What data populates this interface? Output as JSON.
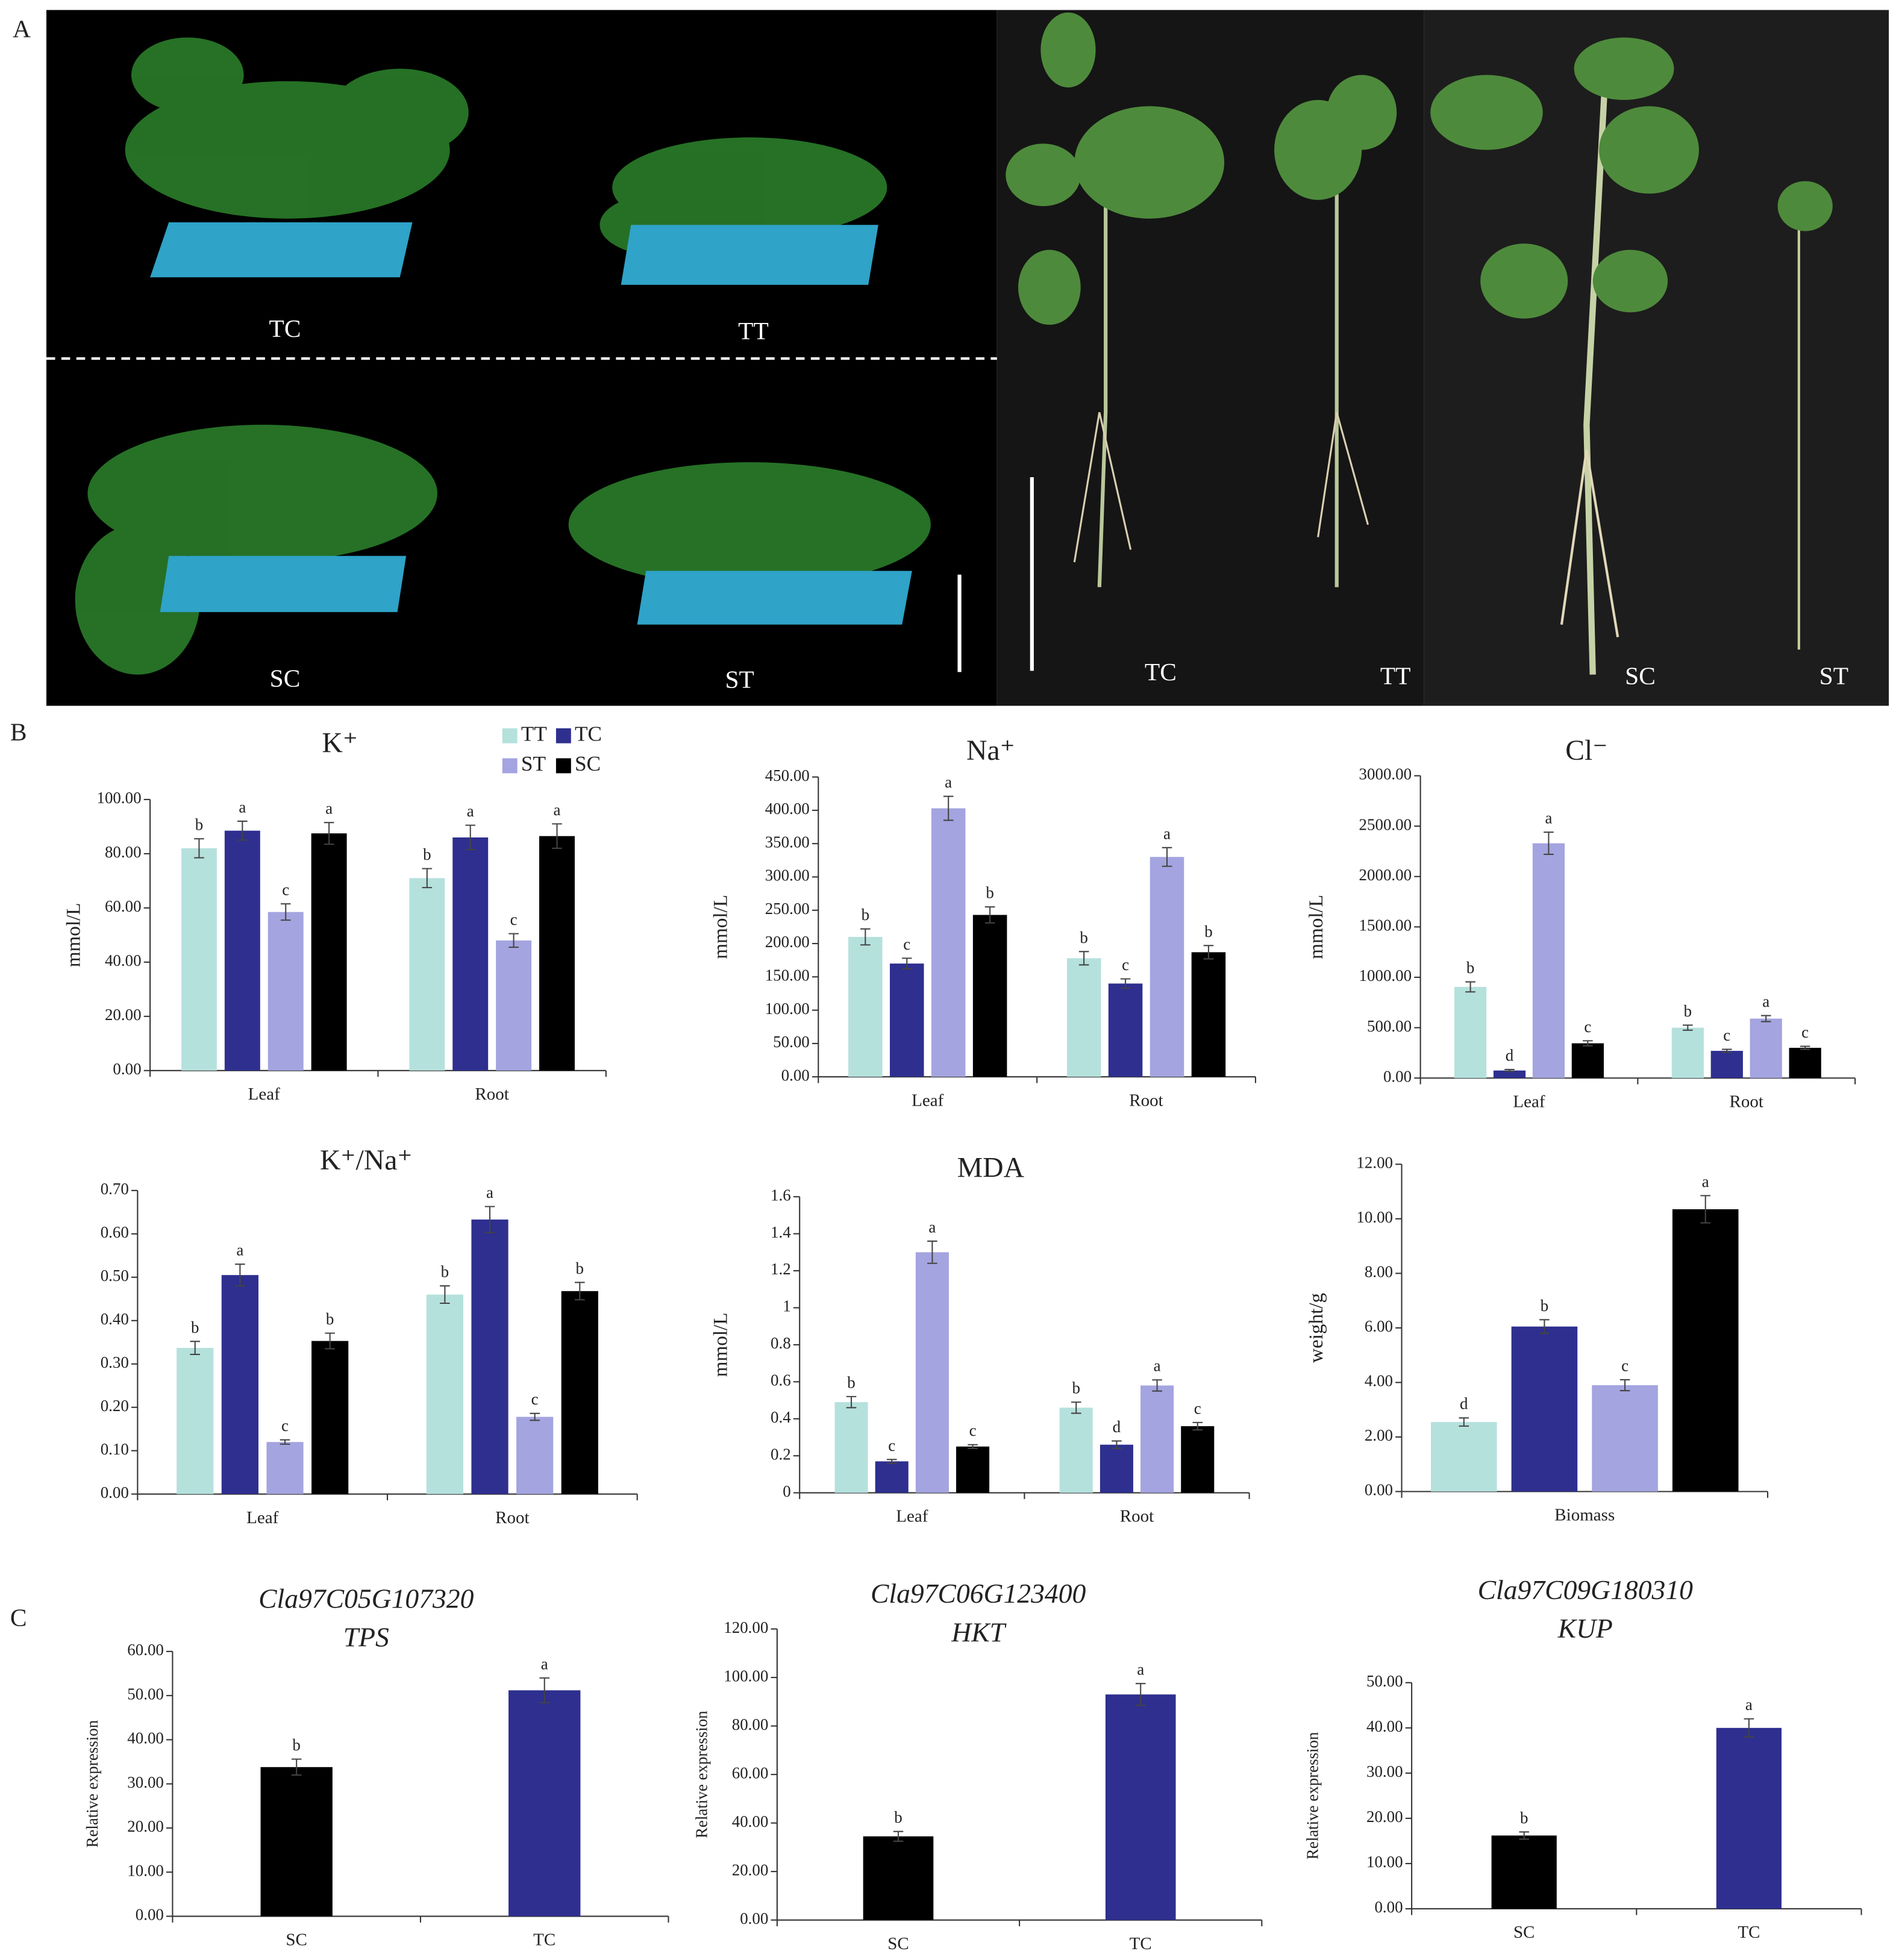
{
  "panel_labels": [
    "A",
    "B",
    "C"
  ],
  "photo_labels": [
    "TC",
    "TT",
    "SC",
    "ST",
    "TC",
    "TT",
    "SC",
    "ST"
  ],
  "chart_data": [
    {
      "type": "bar",
      "title": "K⁺",
      "y_label": "mmol/L",
      "categories": [
        "Leaf",
        "Root"
      ],
      "legend": true,
      "ylim": [
        0,
        100
      ],
      "yticks": [
        {
          "value": 0,
          "label": "0.00"
        },
        {
          "value": 20,
          "label": "20.00"
        },
        {
          "value": 40,
          "label": "40.00"
        },
        {
          "value": 60,
          "label": "60.00"
        },
        {
          "value": 80,
          "label": "80.00"
        },
        {
          "value": 100,
          "label": "100.00"
        }
      ],
      "series": [
        {
          "name": "TT",
          "color": "#b5e1dd",
          "values": [
            82,
            71
          ],
          "errors": [
            3.5,
            3.5
          ],
          "letters": [
            "b",
            "b"
          ]
        },
        {
          "name": "TC",
          "color": "#2e2f8f",
          "values": [
            88.5,
            86
          ],
          "errors": [
            3.5,
            4.5
          ],
          "letters": [
            "a",
            "a"
          ]
        },
        {
          "name": "ST",
          "color": "#a4a4e0",
          "values": [
            58.5,
            48
          ],
          "errors": [
            3,
            2.5
          ],
          "letters": [
            "c",
            "c"
          ]
        },
        {
          "name": "SC",
          "color": "#000000",
          "values": [
            87.5,
            86.5
          ],
          "errors": [
            4,
            4.5
          ],
          "letters": [
            "a",
            "a"
          ]
        }
      ]
    },
    {
      "type": "bar",
      "title": "Na⁺",
      "y_label": "mmol/L",
      "categories": [
        "Leaf",
        "Root"
      ],
      "ylim": [
        0,
        450
      ],
      "yticks": [
        {
          "value": 0,
          "label": "0.00"
        },
        {
          "value": 50,
          "label": "50.00"
        },
        {
          "value": 100,
          "label": "100.00"
        },
        {
          "value": 150,
          "label": "150.00"
        },
        {
          "value": 200,
          "label": "200.00"
        },
        {
          "value": 250,
          "label": "250.00"
        },
        {
          "value": 300,
          "label": "300.00"
        },
        {
          "value": 350,
          "label": "350.00"
        },
        {
          "value": 400,
          "label": "400.00"
        },
        {
          "value": 450,
          "label": "450.00"
        }
      ],
      "series": [
        {
          "color": "#b5e1dd",
          "values": [
            210,
            178
          ],
          "errors": [
            12,
            10
          ],
          "letters": [
            "b",
            "b"
          ]
        },
        {
          "color": "#2e2f8f",
          "values": [
            170,
            140
          ],
          "errors": [
            8,
            7
          ],
          "letters": [
            "c",
            "c"
          ]
        },
        {
          "color": "#a4a4e0",
          "values": [
            403,
            330
          ],
          "errors": [
            18,
            14
          ],
          "letters": [
            "a",
            "a"
          ]
        },
        {
          "color": "#000000",
          "values": [
            243,
            187
          ],
          "errors": [
            12,
            10
          ],
          "letters": [
            "b",
            "b"
          ]
        }
      ]
    },
    {
      "type": "bar",
      "title": "Cl⁻",
      "y_label": "mmol/L",
      "categories": [
        "Leaf",
        "Root"
      ],
      "ylim": [
        0,
        3000
      ],
      "yticks": [
        {
          "value": 0,
          "label": "0.00"
        },
        {
          "value": 500,
          "label": "500.00"
        },
        {
          "value": 1000,
          "label": "1000.00"
        },
        {
          "value": 1500,
          "label": "1500.00"
        },
        {
          "value": 2000,
          "label": "2000.00"
        },
        {
          "value": 2500,
          "label": "2500.00"
        },
        {
          "value": 3000,
          "label": "3000.00"
        }
      ],
      "series": [
        {
          "color": "#b5e1dd",
          "values": [
            905,
            500
          ],
          "errors": [
            50,
            25
          ],
          "letters": [
            "b",
            "b"
          ]
        },
        {
          "color": "#2e2f8f",
          "values": [
            75,
            270
          ],
          "errors": [
            10,
            15
          ],
          "letters": [
            "d",
            "c"
          ]
        },
        {
          "color": "#a4a4e0",
          "values": [
            2330,
            590
          ],
          "errors": [
            110,
            30
          ],
          "letters": [
            "a",
            "a"
          ]
        },
        {
          "color": "#000000",
          "values": [
            345,
            300
          ],
          "errors": [
            25,
            15
          ],
          "letters": [
            "c",
            "c"
          ]
        }
      ]
    },
    {
      "type": "bar",
      "title": "K⁺/Na⁺",
      "categories": [
        "Leaf",
        "Root"
      ],
      "ylim": [
        0,
        0.7
      ],
      "yticks": [
        {
          "value": 0,
          "label": "0.00"
        },
        {
          "value": 0.1,
          "label": "0.10"
        },
        {
          "value": 0.2,
          "label": "0.20"
        },
        {
          "value": 0.3,
          "label": "0.30"
        },
        {
          "value": 0.4,
          "label": "0.40"
        },
        {
          "value": 0.5,
          "label": "0.50"
        },
        {
          "value": 0.6,
          "label": "0.60"
        },
        {
          "value": 0.7,
          "label": "0.70"
        }
      ],
      "series": [
        {
          "color": "#b5e1dd",
          "values": [
            0.337,
            0.46
          ],
          "errors": [
            0.015,
            0.02
          ],
          "letters": [
            "b",
            "b"
          ]
        },
        {
          "color": "#2e2f8f",
          "values": [
            0.505,
            0.633
          ],
          "errors": [
            0.025,
            0.03
          ],
          "letters": [
            "a",
            "a"
          ]
        },
        {
          "color": "#a4a4e0",
          "values": [
            0.12,
            0.178
          ],
          "errors": [
            0.005,
            0.008
          ],
          "letters": [
            "c",
            "c"
          ]
        },
        {
          "color": "#000000",
          "values": [
            0.353,
            0.468
          ],
          "errors": [
            0.018,
            0.02
          ],
          "letters": [
            "b",
            "b"
          ]
        }
      ]
    },
    {
      "type": "bar",
      "title": "MDA",
      "y_label": "mmol/L",
      "categories": [
        "Leaf",
        "Root"
      ],
      "ylim": [
        0,
        1.6
      ],
      "yticks": [
        0,
        0.2,
        0.4,
        0.6,
        0.8,
        1,
        1.2,
        1.4,
        1.6
      ],
      "series": [
        {
          "color": "#b5e1dd",
          "values": [
            0.49,
            0.46
          ],
          "errors": [
            0.03,
            0.03
          ],
          "letters": [
            "b",
            "b"
          ]
        },
        {
          "color": "#2e2f8f",
          "values": [
            0.17,
            0.26
          ],
          "errors": [
            0.01,
            0.02
          ],
          "letters": [
            "c",
            "d"
          ]
        },
        {
          "color": "#a4a4e0",
          "values": [
            1.3,
            0.58
          ],
          "errors": [
            0.06,
            0.03
          ],
          "letters": [
            "a",
            "a"
          ]
        },
        {
          "color": "#000000",
          "values": [
            0.25,
            0.36
          ],
          "errors": [
            0.01,
            0.02
          ],
          "letters": [
            "c",
            "c"
          ]
        }
      ]
    },
    {
      "type": "bar",
      "y_label": "weight/g",
      "categories": [
        "Biomass"
      ],
      "ylim": [
        0,
        12
      ],
      "yticks": [
        {
          "value": 0,
          "label": "0.00"
        },
        {
          "value": 2,
          "label": "2.00"
        },
        {
          "value": 4,
          "label": "4.00"
        },
        {
          "value": 6,
          "label": "6.00"
        },
        {
          "value": 8,
          "label": "8.00"
        },
        {
          "value": 10,
          "label": "10.00"
        },
        {
          "value": 12,
          "label": "12.00"
        }
      ],
      "series": [
        {
          "color": "#b5e1dd",
          "values": [
            2.55
          ],
          "errors": [
            0.15
          ],
          "letters": [
            "d"
          ]
        },
        {
          "color": "#2e2f8f",
          "values": [
            6.05
          ],
          "errors": [
            0.25
          ],
          "letters": [
            "b"
          ]
        },
        {
          "color": "#a4a4e0",
          "values": [
            3.9
          ],
          "errors": [
            0.2
          ],
          "letters": [
            "c"
          ]
        },
        {
          "color": "#000000",
          "values": [
            10.35
          ],
          "errors": [
            0.5
          ],
          "letters": [
            "a"
          ]
        }
      ]
    },
    {
      "type": "bar",
      "title": "Cla97C05G107320",
      "subtitle": "TPS",
      "y_label": "Relative expression",
      "categories": [
        "SC",
        "TC"
      ],
      "ylim": [
        0,
        60
      ],
      "yticks": [
        {
          "value": 0,
          "label": "0.00"
        },
        {
          "value": 10,
          "label": "10.00"
        },
        {
          "value": 20,
          "label": "20.00"
        },
        {
          "value": 30,
          "label": "30.00"
        },
        {
          "value": 40,
          "label": "40.00"
        },
        {
          "value": 50,
          "label": "50.00"
        },
        {
          "value": 60,
          "label": "60.00"
        }
      ],
      "values": [
        33.8,
        51.2
      ],
      "errors": [
        1.8,
        2.8
      ],
      "letters": [
        "b",
        "a"
      ],
      "colors": [
        "#000000",
        "#2e2f8f"
      ]
    },
    {
      "type": "bar",
      "title": "Cla97C06G123400",
      "subtitle": "HKT",
      "y_label": "Relative expression",
      "categories": [
        "SC",
        "TC"
      ],
      "ylim": [
        0,
        120
      ],
      "yticks": [
        {
          "value": 0,
          "label": "0.00"
        },
        {
          "value": 20,
          "label": "20.00"
        },
        {
          "value": 40,
          "label": "40.00"
        },
        {
          "value": 60,
          "label": "60.00"
        },
        {
          "value": 80,
          "label": "80.00"
        },
        {
          "value": 100,
          "label": "100.00"
        },
        {
          "value": 120,
          "label": "120.00"
        }
      ],
      "values": [
        34.5,
        93
      ],
      "errors": [
        2,
        4.5
      ],
      "letters": [
        "b",
        "a"
      ],
      "colors": [
        "#000000",
        "#2e2f8f"
      ]
    },
    {
      "type": "bar",
      "title": "Cla97C09G180310",
      "subtitle": "KUP",
      "y_label": "Relative expression",
      "categories": [
        "SC",
        "TC"
      ],
      "ylim": [
        0,
        50
      ],
      "yticks": [
        {
          "value": 0,
          "label": "0.00"
        },
        {
          "value": 10,
          "label": "10.00"
        },
        {
          "value": 20,
          "label": "20.00"
        },
        {
          "value": 30,
          "label": "30.00"
        },
        {
          "value": 40,
          "label": "40.00"
        },
        {
          "value": 50,
          "label": "50.00"
        }
      ],
      "values": [
        16.2,
        40
      ],
      "errors": [
        0.8,
        2
      ],
      "letters": [
        "b",
        "a"
      ],
      "colors": [
        "#000000",
        "#2e2f8f"
      ]
    }
  ]
}
